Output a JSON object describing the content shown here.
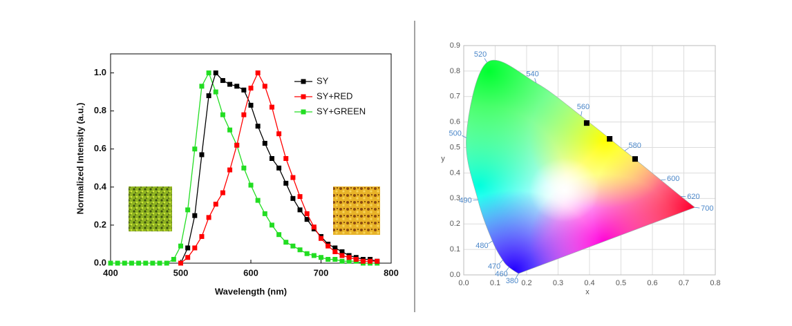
{
  "chart_data": [
    {
      "type": "line",
      "xlabel": "Wavelength (nm)",
      "ylabel": "Normalized Intensity (a.u.)",
      "x": [
        400,
        410,
        420,
        430,
        440,
        450,
        460,
        470,
        480,
        490,
        500,
        510,
        520,
        530,
        540,
        550,
        560,
        570,
        580,
        590,
        600,
        610,
        620,
        630,
        640,
        650,
        660,
        670,
        680,
        690,
        700,
        710,
        720,
        730,
        740,
        750,
        760,
        770,
        780
      ],
      "series": [
        {
          "name": "SY",
          "color": "#000000",
          "values": [
            null,
            null,
            null,
            null,
            null,
            null,
            null,
            null,
            null,
            null,
            0,
            0.08,
            0.25,
            0.57,
            0.88,
            1.0,
            0.96,
            0.94,
            0.93,
            0.91,
            0.83,
            0.72,
            0.63,
            0.55,
            0.5,
            0.42,
            0.34,
            0.28,
            0.23,
            0.18,
            0.14,
            0.1,
            0.08,
            0.06,
            0.04,
            0.03,
            0.02,
            0.02,
            0.01
          ]
        },
        {
          "name": "SY+RED",
          "color": "#ff0000",
          "values": [
            null,
            null,
            null,
            null,
            null,
            null,
            null,
            null,
            null,
            null,
            0,
            0.03,
            0.08,
            0.14,
            0.24,
            0.31,
            0.37,
            0.49,
            0.62,
            0.78,
            0.92,
            1.0,
            0.93,
            0.82,
            0.68,
            0.55,
            0.45,
            0.35,
            0.26,
            0.19,
            0.13,
            0.09,
            0.06,
            0.04,
            0.03,
            0.02,
            0.01,
            0.01,
            0.01
          ]
        },
        {
          "name": "SY+GREEN",
          "color": "#22dd22",
          "values": [
            0,
            0,
            0,
            0,
            0,
            0,
            0,
            0,
            0,
            0.02,
            0.09,
            0.28,
            0.6,
            0.93,
            1.0,
            0.9,
            0.78,
            0.7,
            0.62,
            0.5,
            0.41,
            0.33,
            0.26,
            0.2,
            0.15,
            0.11,
            0.09,
            0.07,
            0.05,
            0.04,
            0.03,
            0.02,
            0.02,
            0.01,
            0.01,
            0.01,
            0,
            0,
            0
          ]
        }
      ],
      "xlim": [
        400,
        800
      ],
      "xticks": [
        400,
        500,
        600,
        700,
        800
      ],
      "ylim": [
        0,
        1.1
      ],
      "yticks": [
        {
          "value": 0,
          "label": "0.0"
        },
        {
          "value": 0.2,
          "label": "0.2"
        },
        {
          "value": 0.4,
          "label": "0.4"
        },
        {
          "value": 0.6,
          "label": "0.6"
        },
        {
          "value": 0.8,
          "label": "0.8"
        },
        {
          "value": 1.0,
          "label": "1.0"
        }
      ],
      "legend": "upper right"
    },
    {
      "type": "scatter",
      "xlabel": "x",
      "ylabel": "y",
      "x": [
        0.391,
        0.464,
        0.545
      ],
      "values": [
        0.596,
        0.534,
        0.455
      ],
      "color": "#000000",
      "spectral_locus": [
        {
          "label": "700",
          "x": 0.735,
          "y": 0.265
        },
        {
          "label": "620",
          "x": 0.691,
          "y": 0.308
        },
        {
          "label": "600",
          "x": 0.627,
          "y": 0.372
        },
        {
          "label": "580",
          "x": 0.512,
          "y": 0.487
        },
        {
          "label": "560",
          "x": 0.373,
          "y": 0.624
        },
        {
          "label": "540",
          "x": 0.23,
          "y": 0.754
        },
        {
          "label": "520",
          "x": 0.074,
          "y": 0.834
        },
        {
          "label": "500",
          "x": 0.008,
          "y": 0.538
        },
        {
          "label": "490",
          "x": 0.045,
          "y": 0.295
        },
        {
          "label": "480",
          "x": 0.091,
          "y": 0.133
        },
        {
          "label": "470",
          "x": 0.124,
          "y": 0.058
        },
        {
          "label": "460",
          "x": 0.144,
          "y": 0.03
        },
        {
          "label": "380",
          "x": 0.174,
          "y": 0.005
        }
      ],
      "xlim": [
        0,
        0.8
      ],
      "xticks": [
        {
          "value": 0,
          "label": "0.0"
        },
        {
          "value": 0.1,
          "label": "0.1"
        },
        {
          "value": 0.2,
          "label": "0.2"
        },
        {
          "value": 0.3,
          "label": "0.3"
        },
        {
          "value": 0.4,
          "label": "0.4"
        },
        {
          "value": 0.5,
          "label": "0.5"
        },
        {
          "value": 0.6,
          "label": "0.6"
        },
        {
          "value": 0.7,
          "label": "0.7"
        },
        {
          "value": 0.8,
          "label": "0.8"
        }
      ],
      "ylim": [
        0,
        0.9
      ],
      "yticks": [
        {
          "value": 0,
          "label": "0.0"
        },
        {
          "value": 0.1,
          "label": "0.1"
        },
        {
          "value": 0.2,
          "label": "0.2"
        },
        {
          "value": 0.3,
          "label": "0.3"
        },
        {
          "value": 0.4,
          "label": "0.4"
        },
        {
          "value": 0.5,
          "label": "0.5"
        },
        {
          "value": 0.6,
          "label": "0.6"
        },
        {
          "value": 0.7,
          "label": "0.7"
        },
        {
          "value": 0.8,
          "label": "0.8"
        },
        {
          "value": 0.9,
          "label": "0.9"
        }
      ],
      "grid": true
    }
  ]
}
